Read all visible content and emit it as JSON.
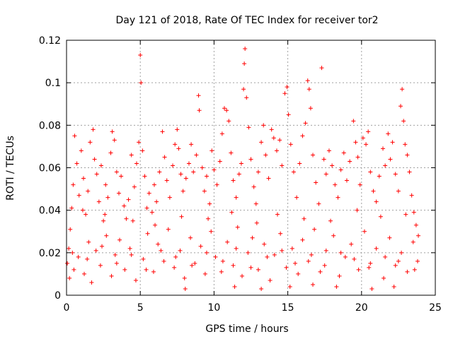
{
  "chart_data": {
    "type": "scatter",
    "title": "Day 121 of 2018, Rate Of TEC Index for receiver tor2",
    "xlabel": "GPS time / hours",
    "ylabel": "ROTI / TECUs",
    "xlim": [
      0,
      25
    ],
    "ylim": [
      0,
      0.12
    ],
    "xticks": [
      0,
      5,
      10,
      15,
      20,
      25
    ],
    "xtick_labels": [
      "0",
      "5",
      "10",
      "15",
      "20",
      "25"
    ],
    "yticks": [
      0,
      0.02,
      0.04,
      0.06,
      0.08,
      0.1,
      0.12
    ],
    "ytick_labels": [
      "0",
      "0.02",
      "0.04",
      "0.06",
      "0.08",
      "0.1",
      "0.12"
    ],
    "grid": true,
    "marker": "+",
    "color": "#ff0000",
    "series": [
      {
        "name": "ROTI",
        "points": [
          [
            0.05,
            0.015
          ],
          [
            0.15,
            0.022
          ],
          [
            0.25,
            0.031
          ],
          [
            0.35,
            0.041
          ],
          [
            0.45,
            0.052
          ],
          [
            0.55,
            0.075
          ],
          [
            0.7,
            0.062
          ],
          [
            0.85,
            0.047
          ],
          [
            1.0,
            0.068
          ],
          [
            1.15,
            0.055
          ],
          [
            1.3,
            0.038
          ],
          [
            1.45,
            0.049
          ],
          [
            1.6,
            0.072
          ],
          [
            1.8,
            0.078
          ],
          [
            1.9,
            0.064
          ],
          [
            2.05,
            0.057
          ],
          [
            2.2,
            0.044
          ],
          [
            2.35,
            0.061
          ],
          [
            2.5,
            0.035
          ],
          [
            2.65,
            0.052
          ],
          [
            2.8,
            0.046
          ],
          [
            3.0,
            0.067
          ],
          [
            3.1,
            0.077
          ],
          [
            3.25,
            0.073
          ],
          [
            3.4,
            0.058
          ],
          [
            3.55,
            0.048
          ],
          [
            3.7,
            0.056
          ],
          [
            3.9,
            0.042
          ],
          [
            4.05,
            0.036
          ],
          [
            4.2,
            0.045
          ],
          [
            4.4,
            0.066
          ],
          [
            4.6,
            0.051
          ],
          [
            4.75,
            0.062
          ],
          [
            4.9,
            0.072
          ],
          [
            5.0,
            0.113
          ],
          [
            5.05,
            0.1
          ],
          [
            5.15,
            0.068
          ],
          [
            5.3,
            0.056
          ],
          [
            5.45,
            0.041
          ],
          [
            5.6,
            0.048
          ],
          [
            5.8,
            0.039
          ],
          [
            5.95,
            0.052
          ],
          [
            6.1,
            0.044
          ],
          [
            6.3,
            0.058
          ],
          [
            6.5,
            0.077
          ],
          [
            6.65,
            0.065
          ],
          [
            6.8,
            0.054
          ],
          [
            7.0,
            0.046
          ],
          [
            7.2,
            0.061
          ],
          [
            7.35,
            0.071
          ],
          [
            7.5,
            0.078
          ],
          [
            7.6,
            0.069
          ],
          [
            7.75,
            0.057
          ],
          [
            7.9,
            0.049
          ],
          [
            8.1,
            0.055
          ],
          [
            8.3,
            0.062
          ],
          [
            8.45,
            0.071
          ],
          [
            8.6,
            0.058
          ],
          [
            8.8,
            0.066
          ],
          [
            8.95,
            0.094
          ],
          [
            9.0,
            0.087
          ],
          [
            9.2,
            0.06
          ],
          [
            9.35,
            0.049
          ],
          [
            9.5,
            0.056
          ],
          [
            9.7,
            0.043
          ],
          [
            9.85,
            0.068
          ],
          [
            10.0,
            0.059
          ],
          [
            10.2,
            0.052
          ],
          [
            10.4,
            0.063
          ],
          [
            10.55,
            0.076
          ],
          [
            10.7,
            0.088
          ],
          [
            10.85,
            0.087
          ],
          [
            11.0,
            0.082
          ],
          [
            11.15,
            0.067
          ],
          [
            11.3,
            0.054
          ],
          [
            11.5,
            0.046
          ],
          [
            11.7,
            0.057
          ],
          [
            11.85,
            0.062
          ],
          [
            12.0,
            0.097
          ],
          [
            12.05,
            0.109
          ],
          [
            12.1,
            0.116
          ],
          [
            12.2,
            0.093
          ],
          [
            12.35,
            0.079
          ],
          [
            12.5,
            0.064
          ],
          [
            12.7,
            0.051
          ],
          [
            12.85,
            0.043
          ],
          [
            13.0,
            0.058
          ],
          [
            13.2,
            0.072
          ],
          [
            13.35,
            0.08
          ],
          [
            13.5,
            0.066
          ],
          [
            13.7,
            0.055
          ],
          [
            13.9,
            0.078
          ],
          [
            14.05,
            0.074
          ],
          [
            14.25,
            0.068
          ],
          [
            14.45,
            0.073
          ],
          [
            14.6,
            0.061
          ],
          [
            14.8,
            0.095
          ],
          [
            14.95,
            0.098
          ],
          [
            15.05,
            0.085
          ],
          [
            15.2,
            0.071
          ],
          [
            15.4,
            0.058
          ],
          [
            15.6,
            0.046
          ],
          [
            15.8,
            0.062
          ],
          [
            16.0,
            0.075
          ],
          [
            16.2,
            0.081
          ],
          [
            16.35,
            0.101
          ],
          [
            16.45,
            0.097
          ],
          [
            16.55,
            0.088
          ],
          [
            16.7,
            0.066
          ],
          [
            16.9,
            0.053
          ],
          [
            17.1,
            0.043
          ],
          [
            17.3,
            0.107
          ],
          [
            17.45,
            0.064
          ],
          [
            17.6,
            0.057
          ],
          [
            17.8,
            0.068
          ],
          [
            18.0,
            0.061
          ],
          [
            18.2,
            0.052
          ],
          [
            18.4,
            0.046
          ],
          [
            18.6,
            0.059
          ],
          [
            18.8,
            0.067
          ],
          [
            19.0,
            0.054
          ],
          [
            19.2,
            0.063
          ],
          [
            19.45,
            0.082
          ],
          [
            19.6,
            0.072
          ],
          [
            19.75,
            0.065
          ],
          [
            19.9,
            0.052
          ],
          [
            20.1,
            0.074
          ],
          [
            20.3,
            0.071
          ],
          [
            20.45,
            0.077
          ],
          [
            20.6,
            0.058
          ],
          [
            20.8,
            0.049
          ],
          [
            21.0,
            0.044
          ],
          [
            21.2,
            0.056
          ],
          [
            21.45,
            0.069
          ],
          [
            21.6,
            0.061
          ],
          [
            21.8,
            0.076
          ],
          [
            21.95,
            0.064
          ],
          [
            22.1,
            0.072
          ],
          [
            22.3,
            0.057
          ],
          [
            22.5,
            0.049
          ],
          [
            22.65,
            0.089
          ],
          [
            22.75,
            0.097
          ],
          [
            22.85,
            0.082
          ],
          [
            22.95,
            0.071
          ],
          [
            23.1,
            0.066
          ],
          [
            23.25,
            0.058
          ],
          [
            23.4,
            0.047
          ],
          [
            23.55,
            0.039
          ],
          [
            23.7,
            0.033
          ],
          [
            23.85,
            0.028
          ],
          [
            1.1,
            0.04
          ],
          [
            2.6,
            0.038
          ],
          [
            4.5,
            0.035
          ],
          [
            6.0,
            0.033
          ],
          [
            7.8,
            0.037
          ],
          [
            9.6,
            0.036
          ],
          [
            11.2,
            0.039
          ],
          [
            12.9,
            0.034
          ],
          [
            14.3,
            0.038
          ],
          [
            16.1,
            0.036
          ],
          [
            17.9,
            0.035
          ],
          [
            19.7,
            0.04
          ],
          [
            21.3,
            0.037
          ],
          [
            23.0,
            0.038
          ],
          [
            0.2,
            0.008
          ],
          [
            0.5,
            0.012
          ],
          [
            0.8,
            0.018
          ],
          [
            1.2,
            0.01
          ],
          [
            1.5,
            0.025
          ],
          [
            1.7,
            0.006
          ],
          [
            2.0,
            0.021
          ],
          [
            2.3,
            0.014
          ],
          [
            2.7,
            0.028
          ],
          [
            3.05,
            0.009
          ],
          [
            3.3,
            0.019
          ],
          [
            3.6,
            0.026
          ],
          [
            3.95,
            0.012
          ],
          [
            4.3,
            0.022
          ],
          [
            4.7,
            0.007
          ],
          [
            5.2,
            0.017
          ],
          [
            5.5,
            0.029
          ],
          [
            5.9,
            0.011
          ],
          [
            6.2,
            0.024
          ],
          [
            6.6,
            0.016
          ],
          [
            6.9,
            0.031
          ],
          [
            7.3,
            0.013
          ],
          [
            7.7,
            0.021
          ],
          [
            8.0,
            0.008
          ],
          [
            8.4,
            0.027
          ],
          [
            8.7,
            0.015
          ],
          [
            9.1,
            0.023
          ],
          [
            9.4,
            0.01
          ],
          [
            9.8,
            0.03
          ],
          [
            10.1,
            0.018
          ],
          [
            10.5,
            0.011
          ],
          [
            10.9,
            0.025
          ],
          [
            11.3,
            0.014
          ],
          [
            11.6,
            0.032
          ],
          [
            11.9,
            0.009
          ],
          [
            12.3,
            0.02
          ],
          [
            12.6,
            0.027
          ],
          [
            13.0,
            0.012
          ],
          [
            13.4,
            0.024
          ],
          [
            13.8,
            0.007
          ],
          [
            14.1,
            0.019
          ],
          [
            14.5,
            0.029
          ],
          [
            14.9,
            0.013
          ],
          [
            15.3,
            0.022
          ],
          [
            15.7,
            0.01
          ],
          [
            16.0,
            0.026
          ],
          [
            16.4,
            0.016
          ],
          [
            16.8,
            0.031
          ],
          [
            17.2,
            0.011
          ],
          [
            17.6,
            0.021
          ],
          [
            18.1,
            0.028
          ],
          [
            18.5,
            0.009
          ],
          [
            18.9,
            0.018
          ],
          [
            19.3,
            0.024
          ],
          [
            19.8,
            0.012
          ],
          [
            20.2,
            0.03
          ],
          [
            20.6,
            0.015
          ],
          [
            21.0,
            0.022
          ],
          [
            21.5,
            0.008
          ],
          [
            21.9,
            0.027
          ],
          [
            22.3,
            0.014
          ],
          [
            22.7,
            0.02
          ],
          [
            23.1,
            0.011
          ],
          [
            23.5,
            0.025
          ],
          [
            23.8,
            0.016
          ],
          [
            0.4,
            0.02
          ],
          [
            1.4,
            0.017
          ],
          [
            2.4,
            0.023
          ],
          [
            3.4,
            0.015
          ],
          [
            4.4,
            0.019
          ],
          [
            5.4,
            0.012
          ],
          [
            6.4,
            0.021
          ],
          [
            7.4,
            0.018
          ],
          [
            8.5,
            0.014
          ],
          [
            9.5,
            0.02
          ],
          [
            10.6,
            0.016
          ],
          [
            11.5,
            0.022
          ],
          [
            12.5,
            0.013
          ],
          [
            13.6,
            0.018
          ],
          [
            14.6,
            0.021
          ],
          [
            15.5,
            0.015
          ],
          [
            16.6,
            0.019
          ],
          [
            17.5,
            0.014
          ],
          [
            18.6,
            0.02
          ],
          [
            19.5,
            0.017
          ],
          [
            20.5,
            0.013
          ],
          [
            21.6,
            0.018
          ],
          [
            22.5,
            0.016
          ],
          [
            23.6,
            0.012
          ],
          [
            8.05,
            0.003
          ],
          [
            11.4,
            0.004
          ],
          [
            13.2,
            0.003
          ],
          [
            15.15,
            0.004
          ],
          [
            16.7,
            0.005
          ],
          [
            18.3,
            0.004
          ],
          [
            20.7,
            0.003
          ],
          [
            22.2,
            0.004
          ]
        ]
      }
    ]
  }
}
